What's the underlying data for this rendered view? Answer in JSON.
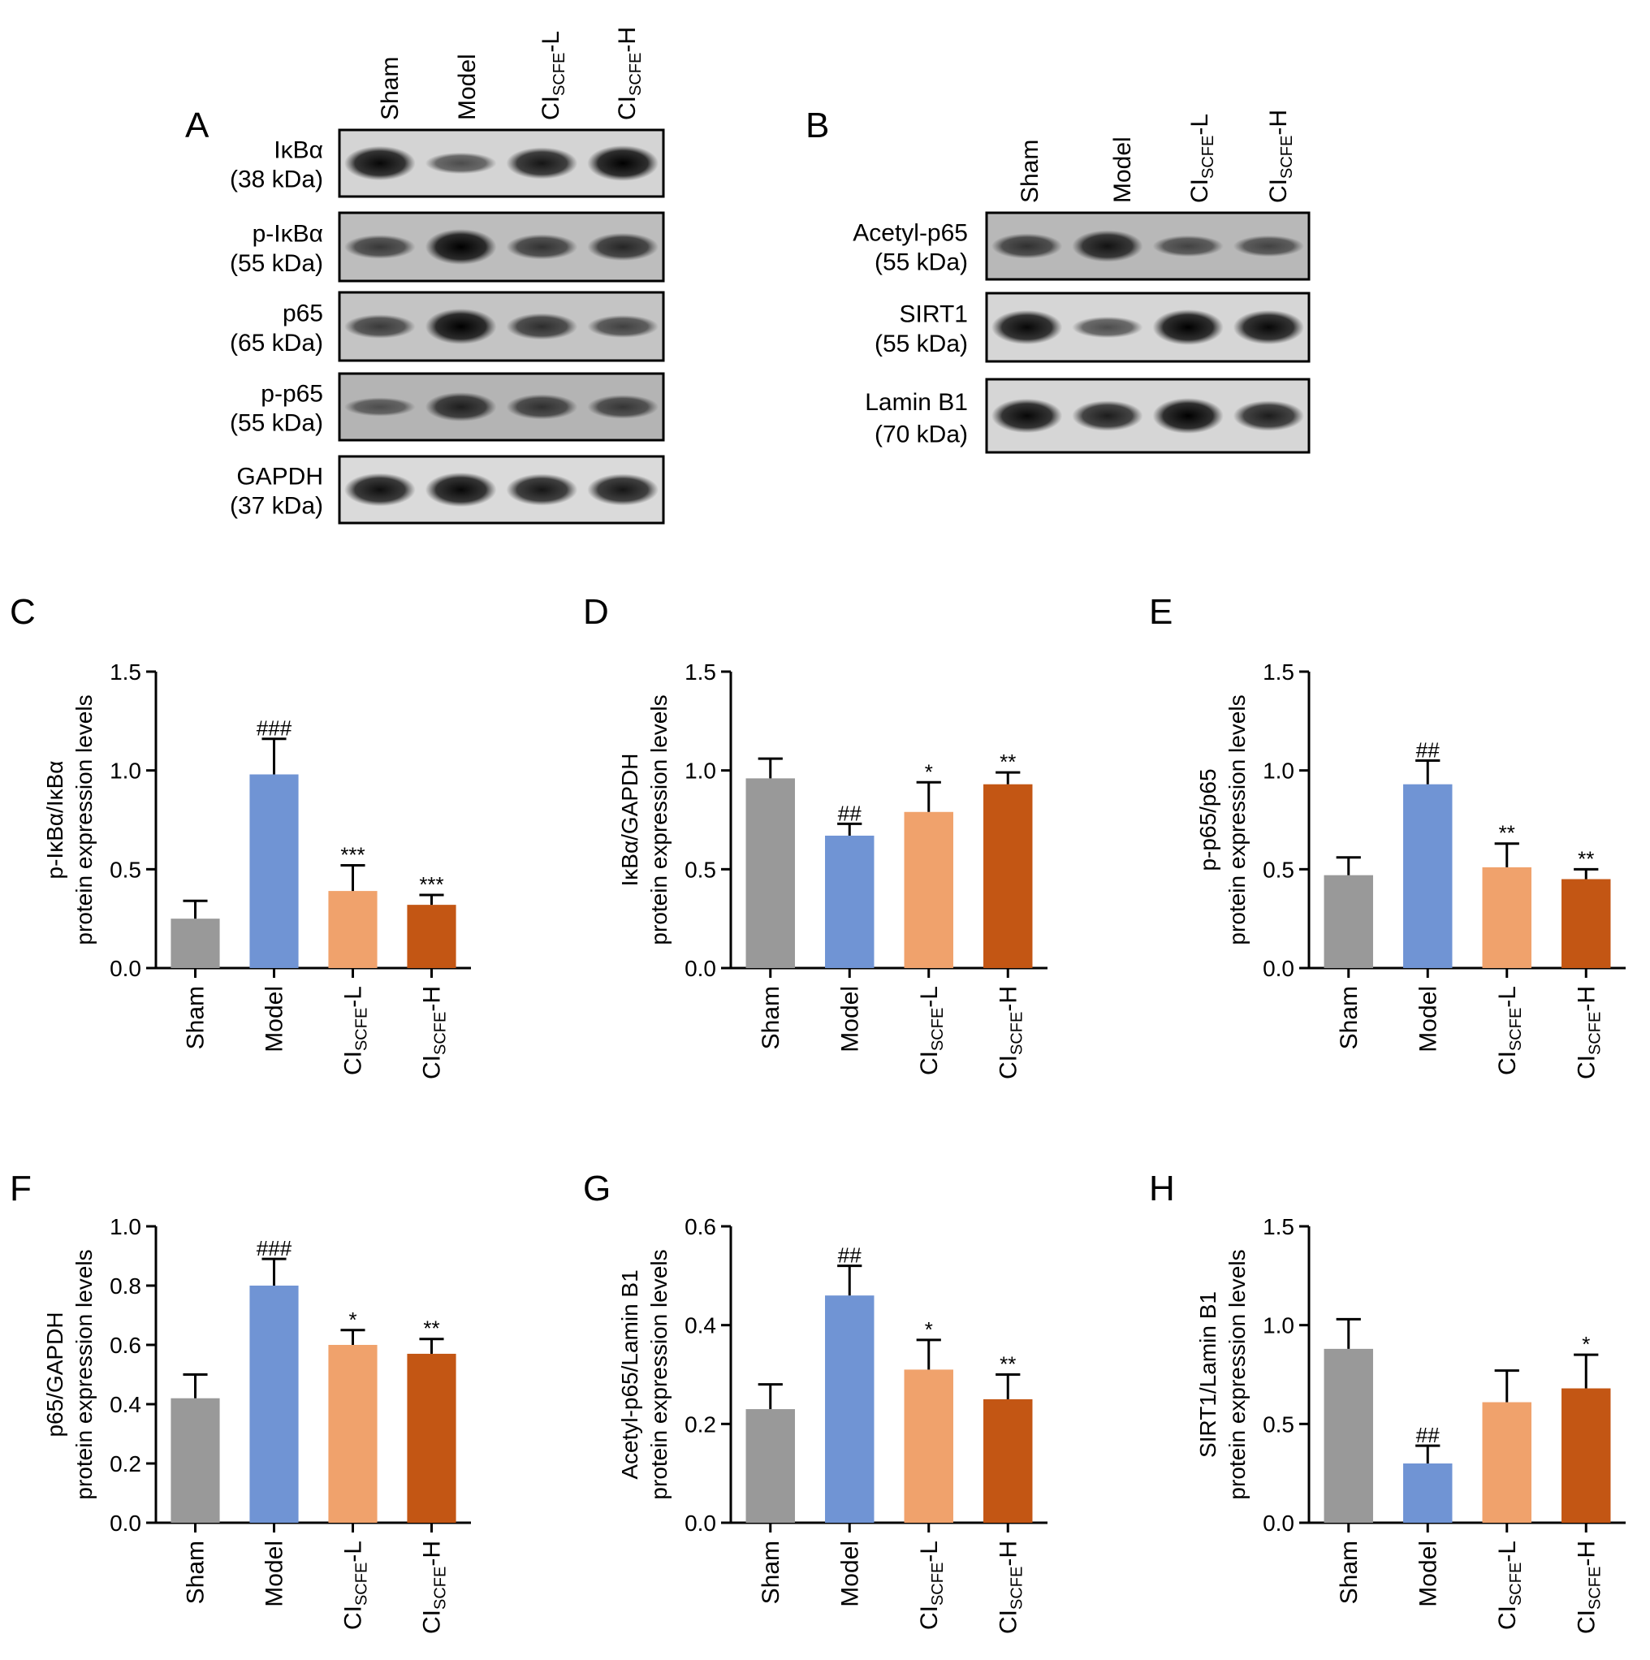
{
  "blots": [
    {
      "panel": "A",
      "lanes": [
        "Sham",
        "Model",
        "CISCFE-L",
        "CISCFE-H"
      ],
      "rows": [
        {
          "name": "IκBα",
          "kda": "(38 kDa)",
          "intensity": [
            0.95,
            0.45,
            0.85,
            1.0
          ],
          "bg": "#d4d4d4"
        },
        {
          "name": "p-IκBα",
          "kda": "(55 kDa)",
          "intensity": [
            0.55,
            1.0,
            0.6,
            0.7
          ],
          "bg": "#bdbdbd"
        },
        {
          "name": "p65",
          "kda": "(65 kDa)",
          "intensity": [
            0.55,
            1.0,
            0.65,
            0.5
          ],
          "bg": "#c4c4c4"
        },
        {
          "name": "p-p65",
          "kda": "(55 kDa)",
          "intensity": [
            0.35,
            0.75,
            0.6,
            0.55
          ],
          "bg": "#b4b4b4"
        },
        {
          "name": "GAPDH",
          "kda": "(37 kDa)",
          "intensity": [
            0.9,
            0.95,
            0.85,
            0.85
          ],
          "bg": "#dadada"
        }
      ]
    },
    {
      "panel": "B",
      "lanes": [
        "Sham",
        "Model",
        "CISCFE-L",
        "CISCFE-H"
      ],
      "rows": [
        {
          "name": "Acetyl-p65",
          "kda": "(55 kDa)",
          "intensity": [
            0.6,
            0.85,
            0.45,
            0.45
          ],
          "bg": "#b8b8b8"
        },
        {
          "name": "SIRT1",
          "kda": "(55 kDa)",
          "intensity": [
            0.95,
            0.45,
            1.0,
            0.95
          ],
          "bg": "#d6d6d6"
        },
        {
          "name": "Lamin B1",
          "kda": "(70 kDa)",
          "intensity": [
            0.95,
            0.8,
            1.0,
            0.8
          ],
          "bg": "#d6d6d6"
        }
      ]
    }
  ],
  "chart_data": [
    {
      "type": "bar",
      "panel": "C",
      "categories": [
        "Sham",
        "Model",
        "CISCFE-L",
        "CISCFE-H"
      ],
      "values": [
        0.25,
        0.98,
        0.39,
        0.32
      ],
      "errors": [
        0.09,
        0.18,
        0.13,
        0.05
      ],
      "sig": [
        "",
        "###",
        "***",
        "***"
      ],
      "ylabel": "p-IκBα/IκBα",
      "ylabel2": "protein expression levels",
      "ylim": [
        0,
        1.5
      ],
      "yticks": [
        "0.0",
        "0.5",
        "1.0",
        "1.5"
      ]
    },
    {
      "type": "bar",
      "panel": "D",
      "categories": [
        "Sham",
        "Model",
        "CISCFE-L",
        "CISCFE-H"
      ],
      "values": [
        0.96,
        0.67,
        0.79,
        0.93
      ],
      "errors": [
        0.1,
        0.06,
        0.15,
        0.06
      ],
      "sig": [
        "",
        "##",
        "*",
        "**"
      ],
      "ylabel": "IκBα/GAPDH",
      "ylabel2": "protein expression levels",
      "ylim": [
        0,
        1.5
      ],
      "yticks": [
        "0.0",
        "0.5",
        "1.0",
        "1.5"
      ]
    },
    {
      "type": "bar",
      "panel": "E",
      "categories": [
        "Sham",
        "Model",
        "CISCFE-L",
        "CISCFE-H"
      ],
      "values": [
        0.47,
        0.93,
        0.51,
        0.45
      ],
      "errors": [
        0.09,
        0.12,
        0.12,
        0.05
      ],
      "sig": [
        "",
        "##",
        "**",
        "**"
      ],
      "ylabel": "p-p65/p65",
      "ylabel2": "protein expression levels",
      "ylim": [
        0,
        1.5
      ],
      "yticks": [
        "0.0",
        "0.5",
        "1.0",
        "1.5"
      ]
    },
    {
      "type": "bar",
      "panel": "F",
      "categories": [
        "Sham",
        "Model",
        "CISCFE-L",
        "CISCFE-H"
      ],
      "values": [
        0.42,
        0.8,
        0.6,
        0.57
      ],
      "errors": [
        0.08,
        0.09,
        0.05,
        0.05
      ],
      "sig": [
        "",
        "###",
        "*",
        "**"
      ],
      "ylabel": "p65/GAPDH",
      "ylabel2": "protein expression levels",
      "ylim": [
        0,
        1.0
      ],
      "yticks": [
        "0.0",
        "0.2",
        "0.4",
        "0.6",
        "0.8",
        "1.0"
      ]
    },
    {
      "type": "bar",
      "panel": "G",
      "categories": [
        "Sham",
        "Model",
        "CISCFE-L",
        "CISCFE-H"
      ],
      "values": [
        0.23,
        0.46,
        0.31,
        0.25
      ],
      "errors": [
        0.05,
        0.06,
        0.06,
        0.05
      ],
      "sig": [
        "",
        "##",
        "*",
        "**"
      ],
      "ylabel": "Acetyl-p65/Lamin B1",
      "ylabel2": "protein expression levels",
      "ylim": [
        0,
        0.6
      ],
      "yticks": [
        "0.0",
        "0.2",
        "0.4",
        "0.6"
      ]
    },
    {
      "type": "bar",
      "panel": "H",
      "categories": [
        "Sham",
        "Model",
        "CISCFE-L",
        "CISCFE-H"
      ],
      "values": [
        0.88,
        0.3,
        0.61,
        0.68
      ],
      "errors": [
        0.15,
        0.09,
        0.16,
        0.17
      ],
      "sig": [
        "",
        "##",
        "",
        "*"
      ],
      "ylabel": "SIRT1/Lamin B1",
      "ylabel2": "protein expression levels",
      "ylim": [
        0,
        1.5
      ],
      "yticks": [
        "0.0",
        "0.5",
        "1.0",
        "1.5"
      ]
    }
  ],
  "colors": [
    "#999999",
    "#7094d4",
    "#f0a26c",
    "#c35614"
  ]
}
